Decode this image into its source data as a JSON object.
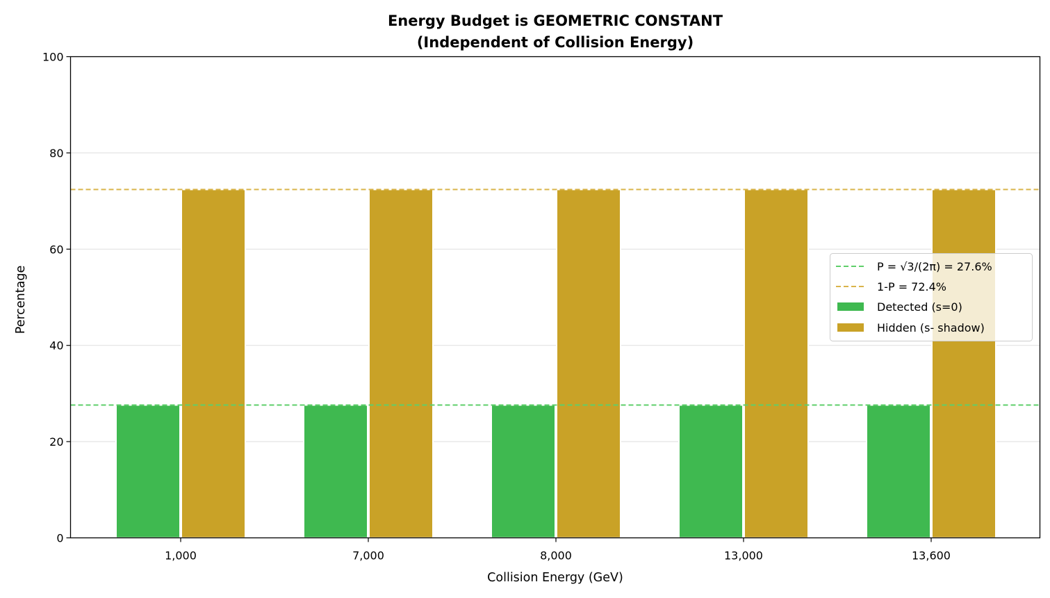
{
  "chart_data": {
    "type": "bar",
    "title": "Energy Budget is GEOMETRIC CONSTANT",
    "subtitle": "(Independent of Collision Energy)",
    "xlabel": "Collision Energy (GeV)",
    "ylabel": "Percentage",
    "categories": [
      "1,000",
      "7,000",
      "8,000",
      "13,000",
      "13,600"
    ],
    "ylim": [
      0,
      100
    ],
    "yticks": [
      0,
      20,
      40,
      60,
      80,
      100
    ],
    "grid": "y",
    "legend_position": "center-right",
    "series": [
      {
        "name": "Detected (s=0)",
        "values": [
          27.6,
          27.6,
          27.6,
          27.6,
          27.6
        ],
        "color": "#3fb950"
      },
      {
        "name": "Hidden (s- shadow)",
        "values": [
          72.4,
          72.4,
          72.4,
          72.4,
          72.4
        ],
        "color": "#c9a227"
      }
    ],
    "reference_lines": [
      {
        "label": "P = √3/(2π) = 27.6%",
        "y": 27.6,
        "color": "#5ecf6a",
        "style": "dashed"
      },
      {
        "label": "1-P = 72.4%",
        "y": 72.4,
        "color": "#d9b44a",
        "style": "dashed"
      }
    ]
  }
}
